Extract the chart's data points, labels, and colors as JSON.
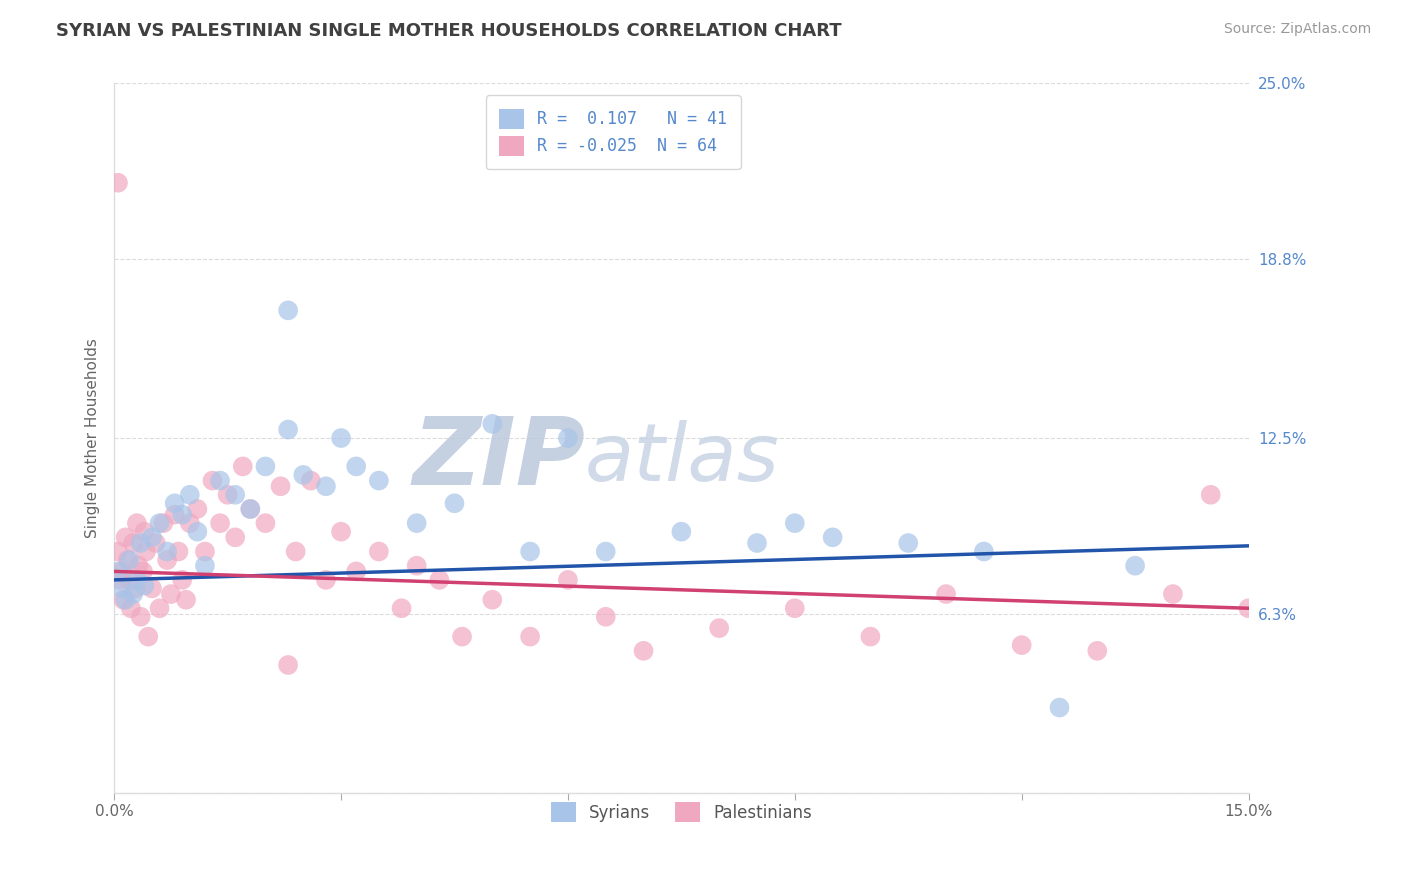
{
  "title": "SYRIAN VS PALESTINIAN SINGLE MOTHER HOUSEHOLDS CORRELATION CHART",
  "source": "Source: ZipAtlas.com",
  "ylabel": "Single Mother Households",
  "xlim": [
    0.0,
    15.0
  ],
  "ylim": [
    0.0,
    25.0
  ],
  "yticks": [
    0.0,
    6.3,
    12.5,
    18.8,
    25.0
  ],
  "ytick_labels": [
    "",
    "6.3%",
    "12.5%",
    "18.8%",
    "25.0%"
  ],
  "syrian_R": 0.107,
  "syrian_N": 41,
  "palestinian_R": -0.025,
  "palestinian_N": 64,
  "syrian_color": "#a8c4e8",
  "palestinian_color": "#f0a8c0",
  "syrian_line_color": "#2255aa",
  "palestinian_line_color": "#d04070",
  "title_color": "#404040",
  "axis_label_color": "#666666",
  "tick_color": "#5588cc",
  "grid_color": "#cccccc",
  "watermark_color": "#dde4ef",
  "background_color": "#ffffff",
  "syrian_x": [
    0.05,
    0.1,
    0.15,
    0.2,
    0.25,
    0.3,
    0.35,
    0.4,
    0.5,
    0.6,
    0.7,
    0.8,
    0.9,
    1.0,
    1.1,
    1.2,
    1.4,
    1.6,
    1.8,
    2.0,
    2.3,
    2.5,
    2.8,
    3.0,
    3.2,
    3.5,
    4.0,
    4.5,
    5.0,
    5.5,
    6.0,
    6.5,
    7.5,
    8.5,
    9.0,
    9.5,
    10.5,
    11.5,
    12.5,
    13.5,
    2.3
  ],
  "syrian_y": [
    7.8,
    7.2,
    6.8,
    8.2,
    7.0,
    7.5,
    8.8,
    7.3,
    9.0,
    9.5,
    8.5,
    10.2,
    9.8,
    10.5,
    9.2,
    8.0,
    11.0,
    10.5,
    10.0,
    11.5,
    12.8,
    11.2,
    10.8,
    12.5,
    11.5,
    11.0,
    9.5,
    10.2,
    13.0,
    8.5,
    12.5,
    8.5,
    9.2,
    8.8,
    9.5,
    9.0,
    8.8,
    8.5,
    3.0,
    8.0,
    17.0
  ],
  "palestinian_x": [
    0.05,
    0.08,
    0.1,
    0.12,
    0.15,
    0.18,
    0.2,
    0.22,
    0.25,
    0.28,
    0.3,
    0.32,
    0.35,
    0.38,
    0.4,
    0.42,
    0.45,
    0.5,
    0.55,
    0.6,
    0.65,
    0.7,
    0.75,
    0.8,
    0.85,
    0.9,
    0.95,
    1.0,
    1.1,
    1.2,
    1.3,
    1.4,
    1.5,
    1.6,
    1.7,
    1.8,
    2.0,
    2.2,
    2.4,
    2.6,
    2.8,
    3.0,
    3.2,
    3.5,
    3.8,
    4.0,
    4.3,
    4.6,
    5.0,
    5.5,
    6.0,
    6.5,
    7.0,
    8.0,
    9.0,
    10.0,
    11.0,
    12.0,
    13.0,
    14.0,
    14.5,
    15.0,
    2.3,
    0.05
  ],
  "palestinian_y": [
    8.5,
    7.5,
    7.8,
    6.8,
    9.0,
    8.2,
    7.5,
    6.5,
    8.8,
    7.2,
    9.5,
    8.0,
    6.2,
    7.8,
    9.2,
    8.5,
    5.5,
    7.2,
    8.8,
    6.5,
    9.5,
    8.2,
    7.0,
    9.8,
    8.5,
    7.5,
    6.8,
    9.5,
    10.0,
    8.5,
    11.0,
    9.5,
    10.5,
    9.0,
    11.5,
    10.0,
    9.5,
    10.8,
    8.5,
    11.0,
    7.5,
    9.2,
    7.8,
    8.5,
    6.5,
    8.0,
    7.5,
    5.5,
    6.8,
    5.5,
    7.5,
    6.2,
    5.0,
    5.8,
    6.5,
    5.5,
    7.0,
    5.2,
    5.0,
    7.0,
    10.5,
    6.5,
    4.5,
    21.5
  ],
  "syrian_trend_x0": 0.0,
  "syrian_trend_y0": 7.5,
  "syrian_trend_x1": 15.0,
  "syrian_trend_y1": 8.7,
  "palestinian_trend_x0": 0.0,
  "palestinian_trend_y0": 7.8,
  "palestinian_trend_x1": 15.0,
  "palestinian_trend_y1": 6.5
}
